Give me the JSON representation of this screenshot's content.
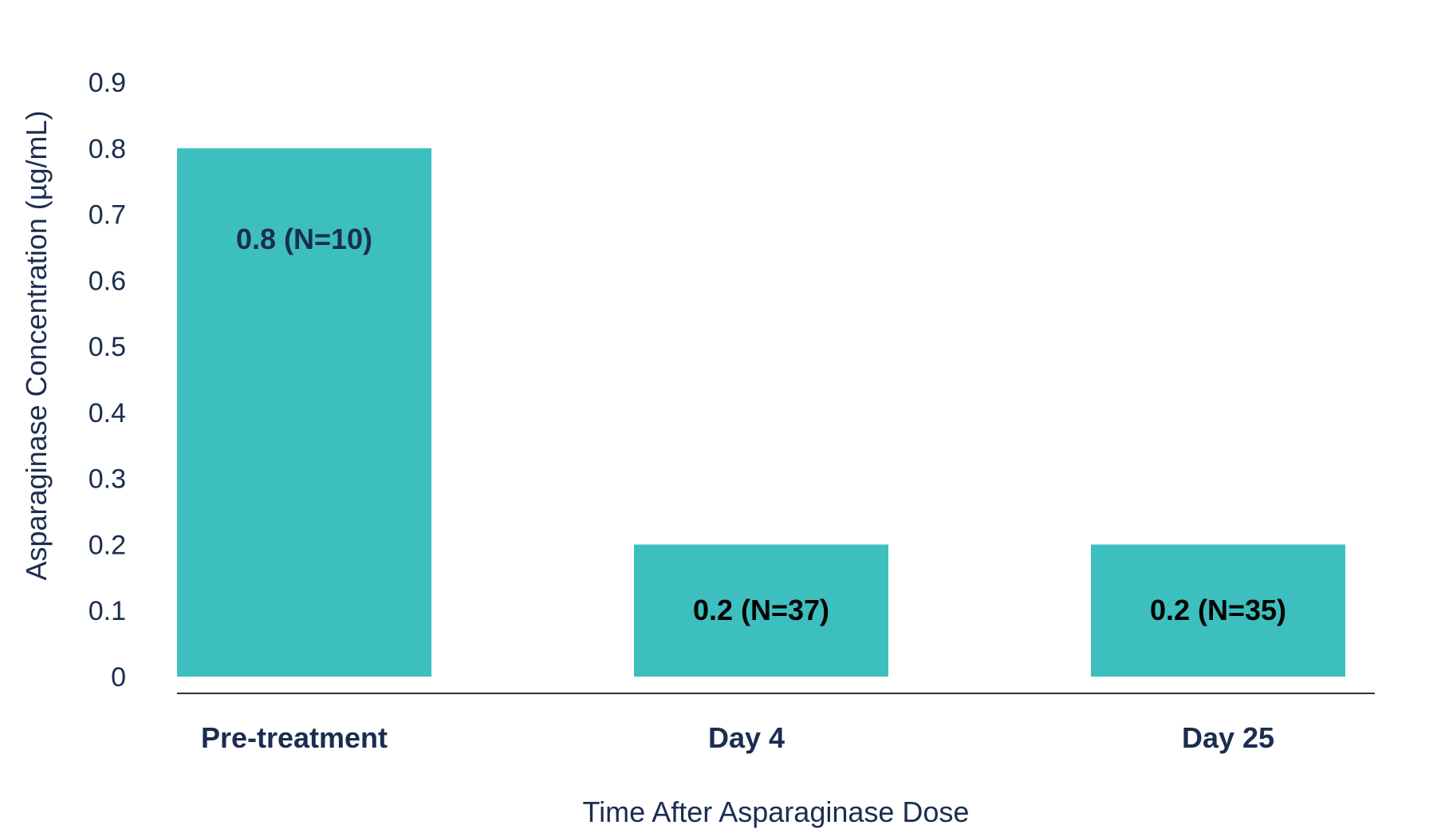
{
  "chart_data": {
    "type": "bar",
    "categories": [
      "Pre-treatment",
      "Day 4",
      "Day 25"
    ],
    "values": [
      0.8,
      0.2,
      0.2
    ],
    "data_labels": [
      "0.8 (N=10)",
      "0.2 (N=37)",
      "0.2 (N=35)"
    ],
    "title": "",
    "xlabel": "Time After Asparaginase Dose",
    "ylabel": "Asparaginase Concentration (µg/mL)",
    "ylim": [
      0,
      0.9
    ],
    "yticks": [
      "0",
      "0.1",
      "0.2",
      "0.3",
      "0.4",
      "0.5",
      "0.6",
      "0.7",
      "0.8",
      "0.9"
    ],
    "grid": false,
    "legend": "none",
    "colors": {
      "bar": "#3dbfbf",
      "text": "#1b2d4f",
      "data_label_first": "#1b2d4f",
      "data_label_other": "#000000",
      "axis_line": "#333333"
    }
  }
}
